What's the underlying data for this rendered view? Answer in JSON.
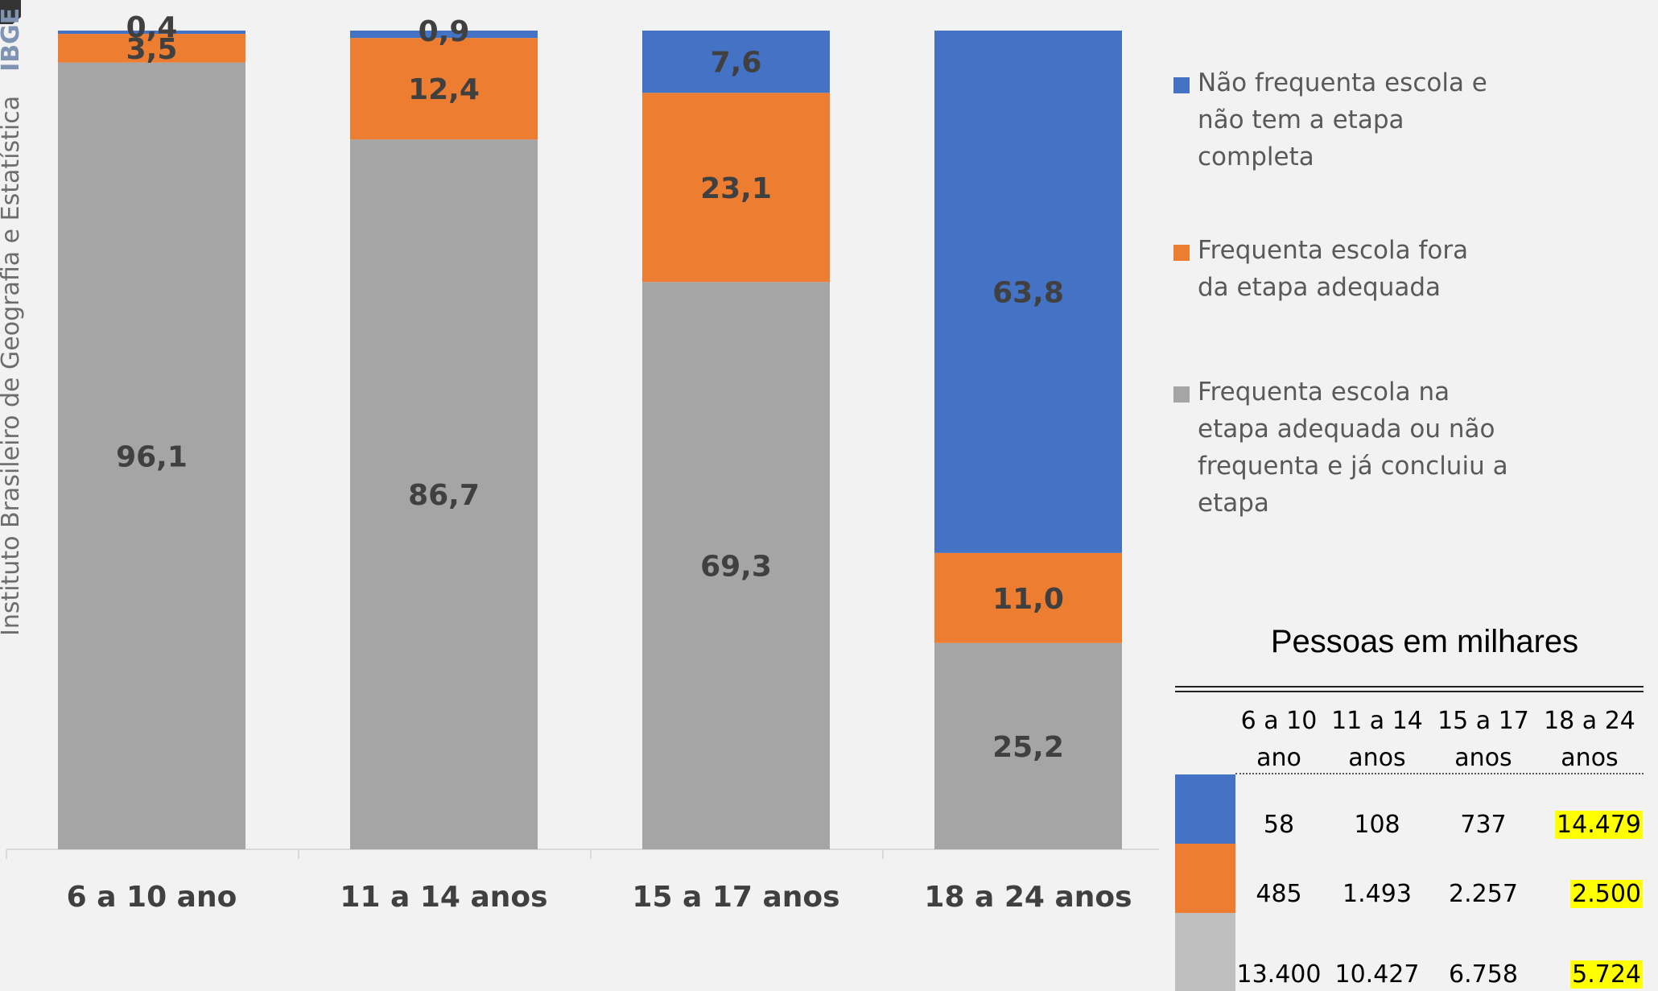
{
  "chart_data": {
    "type": "bar",
    "stacked": true,
    "categories": [
      "6 a 10 ano",
      "11 a 14 anos",
      "15 a 17 anos",
      "18 a 24 anos"
    ],
    "series": [
      {
        "name": "Frequenta escola na etapa adequada ou não frequenta e já concluiu a etapa",
        "color": "#a5a5a5",
        "values": [
          96.1,
          86.7,
          69.3,
          25.2
        ],
        "labels": [
          "96,1",
          "86,7",
          "69,3",
          "25,2"
        ]
      },
      {
        "name": "Frequenta escola fora da etapa adequada",
        "color": "#ed7d31",
        "values": [
          3.5,
          12.4,
          23.1,
          11.0
        ],
        "labels": [
          "3,5",
          "12,4",
          "23,1",
          "11,0"
        ]
      },
      {
        "name": "Não frequenta escola e não tem a etapa completa",
        "color": "#4472c4",
        "values": [
          0.4,
          0.9,
          7.6,
          63.8
        ],
        "labels": [
          "0,4",
          "0,9",
          "7,6",
          "63,8"
        ]
      }
    ],
    "ylim": [
      0,
      100
    ],
    "grid": false,
    "legend_position": "right"
  },
  "legend": [
    {
      "lines": [
        "Não frequenta escola e",
        "não tem a etapa",
        "completa"
      ],
      "color": "#4472c4"
    },
    {
      "lines": [
        "Frequenta escola fora",
        "da etapa adequada"
      ],
      "color": "#ed7d31"
    },
    {
      "lines": [
        "Frequenta escola na",
        "etapa adequada ou não",
        "frequenta e já concluiu a",
        "etapa"
      ],
      "color": "#a5a5a5"
    }
  ],
  "side_text": {
    "institute": "Instituto Brasileiro de Geografia e Estatística",
    "acronym": "IBGE"
  },
  "table": {
    "title": "Pessoas em milhares",
    "headers": [
      [
        "6 a 10",
        "ano"
      ],
      [
        "11 a 14",
        "anos"
      ],
      [
        "15 a 17",
        "anos"
      ],
      [
        "18 a 24",
        "anos"
      ]
    ],
    "rows": [
      {
        "color": "#4472c4",
        "values": [
          "58",
          "108",
          "737",
          "14.479"
        ]
      },
      {
        "color": "#ed7d31",
        "values": [
          "485",
          "1.493",
          "2.257",
          "2.500"
        ]
      },
      {
        "color": "#bfbfbf",
        "values": [
          "13.400",
          "10.427",
          "6.758",
          "5.724"
        ]
      }
    ],
    "highlight_color": "#ffff00"
  }
}
